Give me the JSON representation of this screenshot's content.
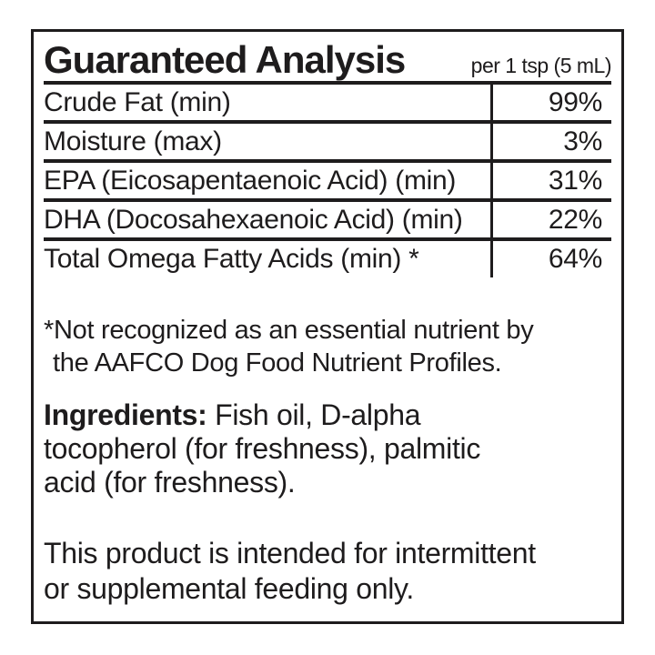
{
  "panel": {
    "title": "Guaranteed Analysis",
    "serving": "per 1 tsp (5 mL)",
    "table": {
      "rows": [
        {
          "name": "Crude Fat (min)",
          "value": "99%"
        },
        {
          "name": "Moisture (max)",
          "value": "3%"
        },
        {
          "name": "EPA (Eicosapentaenoic Acid) (min)",
          "value": "31%"
        },
        {
          "name": "DHA (Docosahexaenoic Acid) (min)",
          "value": "22%"
        },
        {
          "name": "Total Omega Fatty Acids (min) *",
          "value": "64%"
        }
      ]
    },
    "footnote": {
      "line1": "*Not recognized as an essential nutrient by",
      "line2": "the AAFCO Dog Food Nutrient Profiles."
    },
    "ingredients": {
      "label": "Ingredients:",
      "line1_rest": " Fish oil, D-alpha",
      "line2": "tocopherol (for freshness), palmitic",
      "line3": "acid (for freshness)."
    },
    "feeding": {
      "line1": "This product is intended for intermittent",
      "line2": "or supplemental feeding only."
    }
  },
  "colors": {
    "ink": "#1e1c1d",
    "background": "#ffffff"
  }
}
